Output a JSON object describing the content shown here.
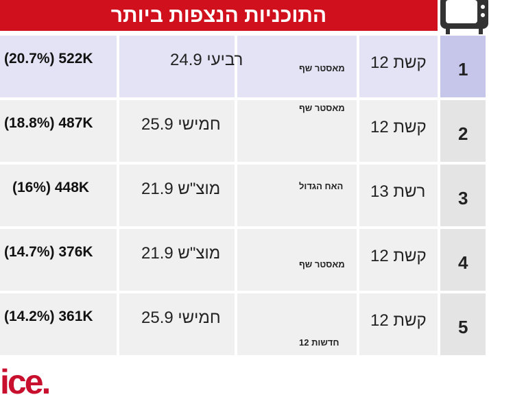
{
  "header": {
    "title": "התוכניות הנצפות ביותר"
  },
  "table": {
    "rows": [
      [
        "1",
        "קשת 12",
        "מאסטר שף",
        "רביעי 24.9",
        "(20.7%) 522K"
      ],
      [
        "2",
        "קשת 12",
        "מאסטר שף",
        "חמישי 25.9",
        "(18.8%) 487K"
      ],
      [
        "3",
        "רשת 13",
        "האח הגדול",
        "מוצ\"ש 21.9",
        "(16%) 448K"
      ],
      [
        "4",
        "קשת 12",
        "מאסטר שף",
        "מוצ\"ש 21.9",
        "(14.7%) 376K"
      ],
      [
        "5",
        "קשת 12",
        "חדשות 12",
        "חמישי 25.9",
        "(14.2%) 361K"
      ]
    ]
  },
  "logo": "ice."
}
